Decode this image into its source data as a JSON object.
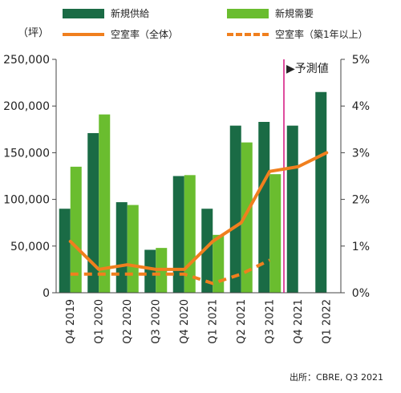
{
  "colors": {
    "supply": "#1a6b45",
    "demand": "#6abd2f",
    "vacancy": "#f07f1e",
    "forecast_line": "#d4127e",
    "axis": "#444444",
    "grid": "#cccccc"
  },
  "unit_label": "（坪）",
  "source": "出所：CBRE, Q3 2021",
  "legend": {
    "supply": "新規供給",
    "demand": "新規需要",
    "vacancy_all": "空室率（全体）",
    "vacancy_new": "空室率（築1年以上）"
  },
  "chart_data": {
    "type": "bar",
    "categories": [
      "Q4 2019",
      "Q1 2020",
      "Q2 2020",
      "Q3 2020",
      "Q4 2020",
      "Q1 2021",
      "Q2 2021",
      "Q3 2021",
      "Q4 2021",
      "Q1 2022"
    ],
    "series": [
      {
        "name": "新規供給",
        "type": "bar",
        "axis": "left",
        "values": [
          90000,
          171000,
          97000,
          46000,
          125000,
          90000,
          179000,
          183000,
          179000,
          215000
        ]
      },
      {
        "name": "新規需要",
        "type": "bar",
        "axis": "left",
        "values": [
          135000,
          191000,
          94000,
          48000,
          126000,
          62000,
          161000,
          127000,
          null,
          null
        ]
      },
      {
        "name": "空室率（全体）",
        "type": "line",
        "axis": "right",
        "values": [
          1.1,
          0.5,
          0.6,
          0.5,
          0.5,
          1.1,
          1.5,
          2.6,
          2.7,
          3.0
        ]
      },
      {
        "name": "空室率（築1年以上）",
        "type": "line",
        "style": "dashed",
        "axis": "right",
        "values": [
          0.4,
          0.4,
          0.4,
          0.4,
          0.4,
          0.2,
          0.4,
          0.7,
          null,
          null
        ]
      }
    ],
    "ylim_left": [
      0,
      250000
    ],
    "yticks_left": [
      "0",
      "50,000",
      "100,000",
      "150,000",
      "200,000",
      "250,000"
    ],
    "ylim_right": [
      0,
      5
    ],
    "yticks_right": [
      "0%",
      "1%",
      "2%",
      "3%",
      "4%",
      "5%"
    ],
    "forecast_label": "▶予測値",
    "forecast_start_index": 8,
    "grid": false,
    "legend_position": "top"
  }
}
